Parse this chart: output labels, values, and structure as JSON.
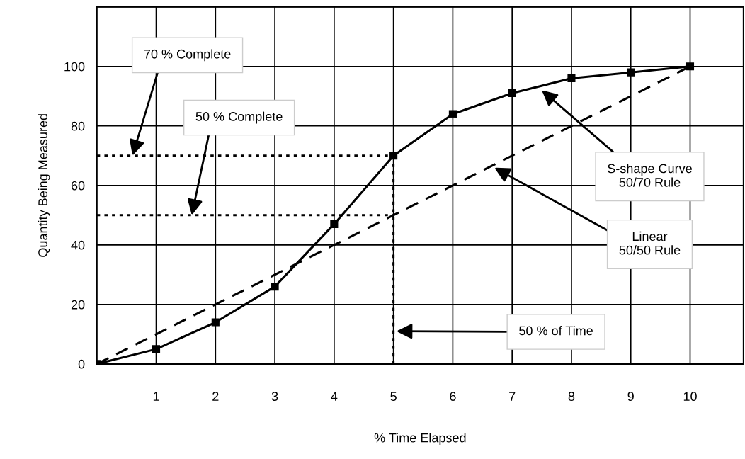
{
  "chart_data": {
    "type": "line",
    "xlabel": "% Time Elapsed",
    "ylabel": "Quantity Being Measured",
    "xlim": [
      0,
      10.9
    ],
    "ylim": [
      0,
      120
    ],
    "xticks": [
      1,
      2,
      3,
      4,
      5,
      6,
      7,
      8,
      9,
      10
    ],
    "yticks": [
      0,
      20,
      40,
      60,
      80,
      100,
      {
        "value": 120,
        "label": null
      }
    ],
    "grid": true,
    "legend": false,
    "series": [
      {
        "color": "#000000",
        "x": [
          0,
          1,
          2,
          3,
          4,
          5,
          6,
          7,
          8,
          9,
          10
        ],
        "values": [
          0,
          5,
          14,
          26,
          47,
          70,
          84,
          91,
          96,
          98,
          100
        ],
        "marker": "square",
        "line_style": "solid"
      },
      {
        "color": "#000000",
        "x": [
          0,
          10
        ],
        "values": [
          0,
          100
        ],
        "marker": "none",
        "line_style": "dashed"
      },
      {
        "color": "#000000",
        "x": [
          0,
          5
        ],
        "values": [
          70,
          70
        ],
        "marker": "none",
        "line_style": "dotted"
      },
      {
        "color": "#000000",
        "x": [
          0,
          5
        ],
        "values": [
          50,
          50
        ],
        "marker": "none",
        "line_style": "dotted"
      },
      {
        "color": "#000000",
        "x": [
          5,
          5
        ],
        "values": [
          0,
          70
        ],
        "marker": "none",
        "line_style": "dotted"
      }
    ],
    "annotations": [
      {
        "text": "70 % Complete",
        "x": 0.6,
        "y": 70
      },
      {
        "text": "50 % Complete",
        "x": 1.6,
        "y": 50
      },
      {
        "text": "S-shape Curve\n50/70 Rule",
        "x": 7.5,
        "y": 92
      },
      {
        "text": "Linear\n50/50 Rule",
        "x": 6.7,
        "y": 66
      },
      {
        "text": "50 % of Time",
        "x": 5.05,
        "y": 11
      }
    ]
  }
}
